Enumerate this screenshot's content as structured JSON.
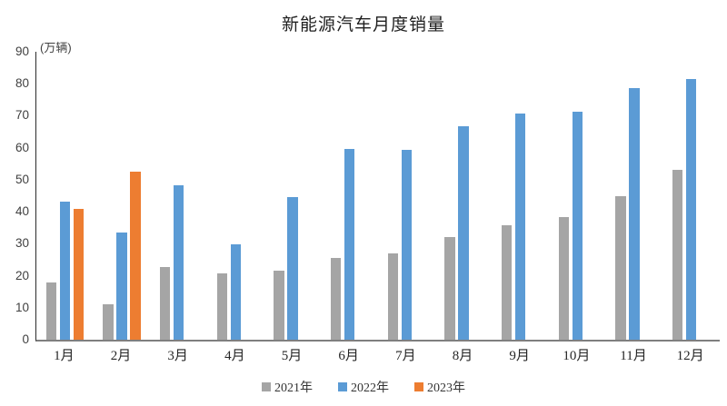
{
  "chart_data": {
    "type": "bar",
    "title": "新能源汽车月度销量",
    "ylabel": "(万辆)",
    "xlabel": "",
    "categories": [
      "1月",
      "2月",
      "3月",
      "4月",
      "5月",
      "6月",
      "7月",
      "8月",
      "9月",
      "10月",
      "11月",
      "12月"
    ],
    "series": [
      {
        "name": "2021年",
        "color": "#A5A5A5",
        "values": [
          17.9,
          11.0,
          22.6,
          20.6,
          21.7,
          25.6,
          27.1,
          32.1,
          35.7,
          38.3,
          45.0,
          53.1
        ]
      },
      {
        "name": "2022年",
        "color": "#5B9BD5",
        "values": [
          43.1,
          33.4,
          48.4,
          29.9,
          44.7,
          59.6,
          59.3,
          66.6,
          70.8,
          71.4,
          78.6,
          81.4
        ]
      },
      {
        "name": "2023年",
        "color": "#ED7D31",
        "values": [
          40.8,
          52.5,
          null,
          null,
          null,
          null,
          null,
          null,
          null,
          null,
          null,
          null
        ]
      }
    ],
    "ylim": [
      0,
      90
    ],
    "yticks": [
      0,
      10,
      20,
      30,
      40,
      50,
      60,
      70,
      80,
      90
    ],
    "grid": false,
    "legend_position": "bottom",
    "axis_colors": {
      "y_axis_line": "#2b2b2b",
      "x_axis_line": "#7f7f7f"
    }
  }
}
